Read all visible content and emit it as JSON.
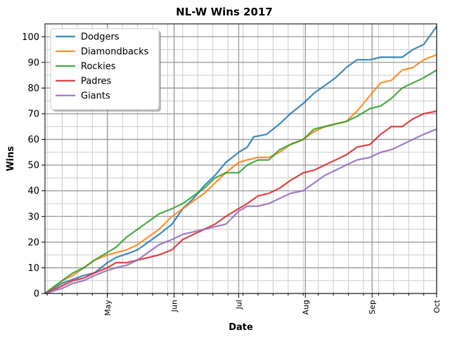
{
  "chart_data": {
    "type": "line",
    "title": "NL-W Wins 2017",
    "xlabel": "Date",
    "ylabel": "Wins",
    "xlim": [
      "2017-04-02",
      "2017-10-01"
    ],
    "ylim": [
      0,
      105
    ],
    "y_ticks": [
      0,
      10,
      20,
      30,
      40,
      50,
      60,
      70,
      80,
      90,
      100
    ],
    "x_ticks": [
      {
        "date": "2017-05-01",
        "label": "May"
      },
      {
        "date": "2017-06-01",
        "label": "Jun"
      },
      {
        "date": "2017-07-01",
        "label": "Jul"
      },
      {
        "date": "2017-08-01",
        "label": "Aug"
      },
      {
        "date": "2017-09-01",
        "label": "Sep"
      },
      {
        "date": "2017-10-01",
        "label": "Oct"
      }
    ],
    "grid": true,
    "legend_position": "top-left",
    "series": [
      {
        "name": "Dodgers",
        "color": "#1f77b4",
        "points": [
          [
            "2017-04-02",
            0
          ],
          [
            "2017-04-10",
            4
          ],
          [
            "2017-04-20",
            7
          ],
          [
            "2017-04-25",
            8
          ],
          [
            "2017-05-01",
            12
          ],
          [
            "2017-05-05",
            14
          ],
          [
            "2017-05-12",
            16
          ],
          [
            "2017-05-15",
            17
          ],
          [
            "2017-05-20",
            20
          ],
          [
            "2017-05-25",
            23
          ],
          [
            "2017-05-31",
            27
          ],
          [
            "2017-06-05",
            33
          ],
          [
            "2017-06-10",
            37
          ],
          [
            "2017-06-15",
            42
          ],
          [
            "2017-06-20",
            46
          ],
          [
            "2017-06-25",
            51
          ],
          [
            "2017-07-01",
            55
          ],
          [
            "2017-07-05",
            57
          ],
          [
            "2017-07-08",
            61
          ],
          [
            "2017-07-14",
            62
          ],
          [
            "2017-07-20",
            66
          ],
          [
            "2017-07-25",
            70
          ],
          [
            "2017-07-31",
            74
          ],
          [
            "2017-08-05",
            78
          ],
          [
            "2017-08-10",
            81
          ],
          [
            "2017-08-15",
            84
          ],
          [
            "2017-08-20",
            88
          ],
          [
            "2017-08-25",
            91
          ],
          [
            "2017-08-31",
            91
          ],
          [
            "2017-09-05",
            92
          ],
          [
            "2017-09-15",
            92
          ],
          [
            "2017-09-20",
            95
          ],
          [
            "2017-09-25",
            97
          ],
          [
            "2017-10-01",
            104
          ]
        ]
      },
      {
        "name": "Diamondbacks",
        "color": "#ff7f0e",
        "points": [
          [
            "2017-04-02",
            0
          ],
          [
            "2017-04-10",
            5
          ],
          [
            "2017-04-15",
            7
          ],
          [
            "2017-04-20",
            10
          ],
          [
            "2017-04-25",
            13
          ],
          [
            "2017-05-01",
            15
          ],
          [
            "2017-05-10",
            17
          ],
          [
            "2017-05-15",
            19
          ],
          [
            "2017-05-20",
            22
          ],
          [
            "2017-05-25",
            25
          ],
          [
            "2017-05-31",
            30
          ],
          [
            "2017-06-05",
            33
          ],
          [
            "2017-06-10",
            36
          ],
          [
            "2017-06-15",
            39
          ],
          [
            "2017-06-20",
            43
          ],
          [
            "2017-06-25",
            47
          ],
          [
            "2017-07-01",
            51
          ],
          [
            "2017-07-05",
            52
          ],
          [
            "2017-07-10",
            53
          ],
          [
            "2017-07-15",
            53
          ],
          [
            "2017-07-20",
            55
          ],
          [
            "2017-07-25",
            58
          ],
          [
            "2017-07-31",
            60
          ],
          [
            "2017-08-05",
            63
          ],
          [
            "2017-08-10",
            65
          ],
          [
            "2017-08-15",
            66
          ],
          [
            "2017-08-20",
            67
          ],
          [
            "2017-08-25",
            71
          ],
          [
            "2017-08-31",
            77
          ],
          [
            "2017-09-05",
            82
          ],
          [
            "2017-09-10",
            83
          ],
          [
            "2017-09-15",
            87
          ],
          [
            "2017-09-20",
            88
          ],
          [
            "2017-09-25",
            91
          ],
          [
            "2017-10-01",
            93
          ]
        ]
      },
      {
        "name": "Rockies",
        "color": "#2ca02c",
        "points": [
          [
            "2017-04-02",
            0
          ],
          [
            "2017-04-10",
            5
          ],
          [
            "2017-04-15",
            8
          ],
          [
            "2017-04-20",
            10
          ],
          [
            "2017-04-25",
            13
          ],
          [
            "2017-05-01",
            16
          ],
          [
            "2017-05-05",
            18
          ],
          [
            "2017-05-10",
            22
          ],
          [
            "2017-05-15",
            25
          ],
          [
            "2017-05-20",
            28
          ],
          [
            "2017-05-25",
            31
          ],
          [
            "2017-05-31",
            33
          ],
          [
            "2017-06-05",
            35
          ],
          [
            "2017-06-10",
            38
          ],
          [
            "2017-06-15",
            41
          ],
          [
            "2017-06-20",
            45
          ],
          [
            "2017-06-25",
            47
          ],
          [
            "2017-07-01",
            47
          ],
          [
            "2017-07-05",
            50
          ],
          [
            "2017-07-10",
            52
          ],
          [
            "2017-07-15",
            52
          ],
          [
            "2017-07-20",
            56
          ],
          [
            "2017-07-25",
            58
          ],
          [
            "2017-07-31",
            60
          ],
          [
            "2017-08-05",
            64
          ],
          [
            "2017-08-10",
            65
          ],
          [
            "2017-08-15",
            66
          ],
          [
            "2017-08-20",
            67
          ],
          [
            "2017-08-25",
            69
          ],
          [
            "2017-08-31",
            72
          ],
          [
            "2017-09-05",
            73
          ],
          [
            "2017-09-10",
            76
          ],
          [
            "2017-09-15",
            80
          ],
          [
            "2017-09-20",
            82
          ],
          [
            "2017-09-25",
            84
          ],
          [
            "2017-10-01",
            87
          ]
        ]
      },
      {
        "name": "Padres",
        "color": "#d62728",
        "points": [
          [
            "2017-04-02",
            0
          ],
          [
            "2017-04-05",
            1
          ],
          [
            "2017-04-10",
            3
          ],
          [
            "2017-04-15",
            5
          ],
          [
            "2017-04-20",
            6
          ],
          [
            "2017-04-25",
            8
          ],
          [
            "2017-05-01",
            10
          ],
          [
            "2017-05-05",
            12
          ],
          [
            "2017-05-10",
            12
          ],
          [
            "2017-05-15",
            13
          ],
          [
            "2017-05-20",
            14
          ],
          [
            "2017-05-25",
            15
          ],
          [
            "2017-05-31",
            17
          ],
          [
            "2017-06-05",
            21
          ],
          [
            "2017-06-10",
            23
          ],
          [
            "2017-06-15",
            25
          ],
          [
            "2017-06-20",
            27
          ],
          [
            "2017-06-25",
            30
          ],
          [
            "2017-07-01",
            33
          ],
          [
            "2017-07-05",
            35
          ],
          [
            "2017-07-10",
            38
          ],
          [
            "2017-07-15",
            39
          ],
          [
            "2017-07-20",
            41
          ],
          [
            "2017-07-25",
            44
          ],
          [
            "2017-07-31",
            47
          ],
          [
            "2017-08-05",
            48
          ],
          [
            "2017-08-10",
            50
          ],
          [
            "2017-08-15",
            52
          ],
          [
            "2017-08-20",
            54
          ],
          [
            "2017-08-25",
            57
          ],
          [
            "2017-08-31",
            58
          ],
          [
            "2017-09-05",
            62
          ],
          [
            "2017-09-10",
            65
          ],
          [
            "2017-09-15",
            65
          ],
          [
            "2017-09-20",
            68
          ],
          [
            "2017-09-25",
            70
          ],
          [
            "2017-10-01",
            71
          ]
        ]
      },
      {
        "name": "Giants",
        "color": "#9467bd",
        "points": [
          [
            "2017-04-02",
            0
          ],
          [
            "2017-04-10",
            2
          ],
          [
            "2017-04-15",
            4
          ],
          [
            "2017-04-20",
            5
          ],
          [
            "2017-04-25",
            7
          ],
          [
            "2017-05-01",
            9
          ],
          [
            "2017-05-05",
            10
          ],
          [
            "2017-05-10",
            11
          ],
          [
            "2017-05-15",
            13
          ],
          [
            "2017-05-20",
            16
          ],
          [
            "2017-05-25",
            19
          ],
          [
            "2017-05-31",
            21
          ],
          [
            "2017-06-05",
            23
          ],
          [
            "2017-06-10",
            24
          ],
          [
            "2017-06-15",
            25
          ],
          [
            "2017-06-20",
            26
          ],
          [
            "2017-06-25",
            27
          ],
          [
            "2017-07-01",
            32
          ],
          [
            "2017-07-05",
            34
          ],
          [
            "2017-07-10",
            34
          ],
          [
            "2017-07-15",
            35
          ],
          [
            "2017-07-20",
            37
          ],
          [
            "2017-07-25",
            39
          ],
          [
            "2017-07-31",
            40
          ],
          [
            "2017-08-05",
            43
          ],
          [
            "2017-08-10",
            46
          ],
          [
            "2017-08-15",
            48
          ],
          [
            "2017-08-20",
            50
          ],
          [
            "2017-08-25",
            52
          ],
          [
            "2017-08-31",
            53
          ],
          [
            "2017-09-05",
            55
          ],
          [
            "2017-09-10",
            56
          ],
          [
            "2017-09-15",
            58
          ],
          [
            "2017-09-20",
            60
          ],
          [
            "2017-09-25",
            62
          ],
          [
            "2017-10-01",
            64
          ]
        ]
      }
    ]
  }
}
